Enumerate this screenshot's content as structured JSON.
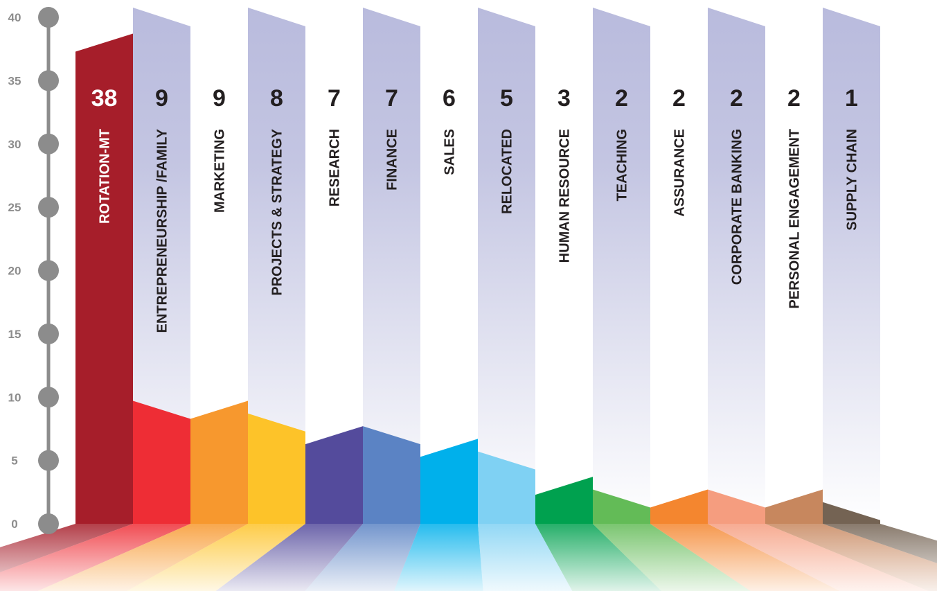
{
  "chart_data": {
    "type": "bar",
    "categories": [
      "ROTATION-MT",
      "ENTREPRENEURSHIP /FAMILY",
      "MARKETING",
      "PROJECTS & STRATEGY",
      "RESEARCH",
      "FINANCE",
      "SALES",
      "RELOCATED",
      "HUMAN RESOURCE",
      "TEACHING",
      "ASSURANCE",
      "CORPORATE BANKING",
      "PERSONAL ENGAGEMENT",
      "SUPPLY CHAIN"
    ],
    "values": [
      38,
      9,
      9,
      8,
      7,
      7,
      6,
      5,
      3,
      2,
      2,
      2,
      2,
      1
    ],
    "value_labels": [
      "38",
      "9",
      "9",
      "8",
      "7",
      "7",
      "6",
      "5",
      "3",
      "2",
      "2",
      "2",
      "2",
      "1"
    ],
    "title": "",
    "xlabel": "",
    "ylabel": "",
    "ylim": [
      0,
      40
    ],
    "yticks": [
      0,
      5,
      10,
      15,
      20,
      25,
      30,
      35,
      40
    ],
    "ytick_labels": [
      "0",
      "5",
      "10",
      "15",
      "20",
      "25",
      "30",
      "35",
      "40"
    ],
    "grid": false,
    "legend": "none",
    "colors": {
      "bars": [
        "#a61e2a",
        "#ee2d35",
        "#f7982e",
        "#fdc329",
        "#544b9c",
        "#5b83c4",
        "#00b0eb",
        "#7fd1f3",
        "#00a14f",
        "#63bb57",
        "#f4862f",
        "#f59d7f",
        "#c7875e",
        "#746353"
      ],
      "column_background": "#b9bbdd",
      "axis": "#8c8c8c",
      "value_text_first": "#ffffff",
      "value_text": "#231f20"
    }
  }
}
